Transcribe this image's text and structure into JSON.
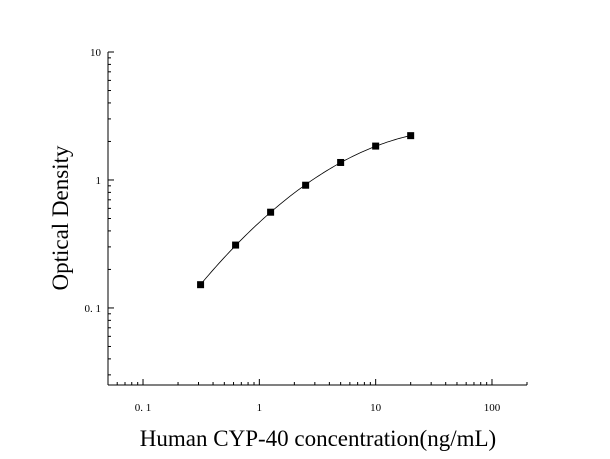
{
  "chart_data": {
    "type": "scatter",
    "title": "",
    "xlabel": "Human CYP-40 concentration(ng/mL)",
    "ylabel": "Optical Density",
    "x_scale": "log",
    "y_scale": "log",
    "xlim": [
      0.05,
      200
    ],
    "ylim": [
      0.025,
      10
    ],
    "x_ticks": [
      {
        "value": 0.1,
        "label": "0. 1"
      },
      {
        "value": 1,
        "label": "1"
      },
      {
        "value": 10,
        "label": "10"
      },
      {
        "value": 100,
        "label": "100"
      }
    ],
    "y_ticks": [
      {
        "value": 0.1,
        "label": "0. 1"
      },
      {
        "value": 1,
        "label": "1"
      },
      {
        "value": 10,
        "label": "10"
      }
    ],
    "grid": false,
    "legend": "none",
    "series": [
      {
        "marker": "square",
        "color": "#000000",
        "x": [
          0.3125,
          0.625,
          1.25,
          2.5,
          5,
          10,
          20
        ],
        "y": [
          0.152,
          0.31,
          0.56,
          0.91,
          1.37,
          1.84,
          2.22
        ]
      }
    ],
    "fit_curve": {
      "style": "smooth",
      "color": "#000000"
    }
  }
}
